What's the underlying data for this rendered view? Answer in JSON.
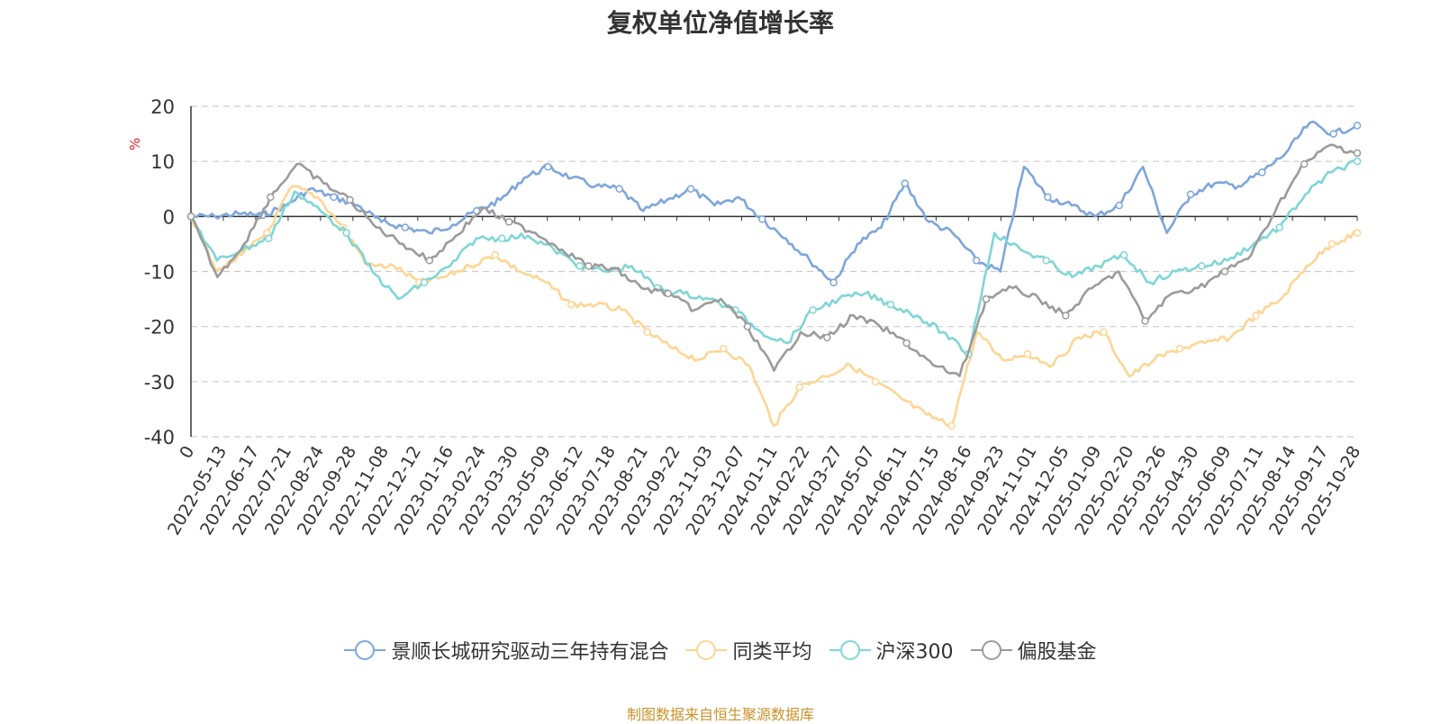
{
  "chart_data": {
    "type": "line",
    "title": "复权单位净值增长率",
    "ylabel": "%",
    "ylim": [
      -40,
      20
    ],
    "yticks": [
      20,
      10,
      0,
      -10,
      -20,
      -30,
      -40
    ],
    "ytick_labels": [
      "20",
      "10",
      "0",
      "-10",
      "-20",
      "-30",
      "-40"
    ],
    "x_tick_labels": [
      "0",
      "2022-05-13",
      "2022-06-17",
      "2022-07-21",
      "2022-08-24",
      "2022-09-28",
      "2022-11-08",
      "2022-12-12",
      "2023-01-16",
      "2023-02-24",
      "2023-03-30",
      "2023-05-09",
      "2023-06-12",
      "2023-07-18",
      "2023-08-21",
      "2023-09-22",
      "2023-11-03",
      "2023-12-07",
      "2024-01-11",
      "2024-02-22",
      "2024-03-27",
      "2024-05-07",
      "2024-06-11",
      "2024-07-15",
      "2024-08-16",
      "2024-09-23",
      "2024-11-01",
      "2024-12-05",
      "2025-01-09",
      "2025-02-20",
      "2025-03-26",
      "2025-04-30",
      "2025-06-09",
      "2025-07-11",
      "2025-08-14",
      "2025-09-17",
      "2025-10-28"
    ],
    "grid": true,
    "legend_position": "bottom",
    "series": [
      {
        "name": "景顺长城研究驱动三年持有混合",
        "color": "#7ea6d9",
        "values": [
          0,
          0,
          0.5,
          0.2,
          2,
          5,
          3.5,
          2,
          -1,
          -2,
          -3,
          -1.5,
          1,
          3,
          7,
          9,
          7,
          5.5,
          5,
          1,
          3,
          5,
          2,
          3.5,
          -0.5,
          -4,
          -8,
          -12,
          -5,
          -2,
          6,
          -1,
          -3,
          -8,
          -10,
          9,
          3.5,
          2,
          0,
          2,
          9,
          -3,
          4,
          6,
          5.5,
          8,
          11.5,
          17,
          15,
          16.5
        ]
      },
      {
        "name": "同类平均",
        "color": "#fcd694",
        "values": [
          0,
          -10,
          -7,
          -3,
          5.5,
          3.5,
          -2,
          -9,
          -9,
          -12,
          -11,
          -9,
          -7,
          -10,
          -12,
          -16,
          -16,
          -17,
          -21,
          -24,
          -26,
          -24,
          -27,
          -38,
          -31,
          -29,
          -27,
          -30,
          -33,
          -36,
          -38,
          -21,
          -26,
          -25,
          -27,
          -22,
          -21,
          -29,
          -26,
          -24,
          -23,
          -22,
          -18,
          -15,
          -9,
          -5,
          -3
        ]
      },
      {
        "name": "沪深300",
        "color": "#7fd6d5",
        "values": [
          0,
          -8,
          -6,
          -4,
          4.5,
          1,
          -3,
          -10,
          -15,
          -12,
          -9,
          -4,
          -4,
          -3.5,
          -6,
          -9,
          -10,
          -9,
          -13,
          -14,
          -15,
          -17,
          -21,
          -23,
          -17,
          -15,
          -14,
          -16,
          -18,
          -21,
          -25,
          -3,
          -6,
          -8,
          -11,
          -9,
          -7,
          -12,
          -10,
          -9,
          -8,
          -5,
          -2,
          4,
          8,
          10
        ]
      },
      {
        "name": "偏股基金",
        "color": "#9b9b9b",
        "values": [
          0,
          -11,
          -5,
          3.5,
          9.5,
          6,
          3,
          -2,
          -5,
          -8,
          -3.5,
          1.5,
          -1,
          -3,
          -6,
          -9,
          -9.5,
          -13,
          -14,
          -17,
          -15,
          -20,
          -28,
          -21,
          -22,
          -18,
          -20,
          -23,
          -27,
          -29,
          -15,
          -13,
          -15,
          -18,
          -13,
          -10,
          -19,
          -14,
          -13,
          -10,
          -7,
          2,
          9.5,
          13,
          11.5
        ]
      }
    ]
  },
  "legend_labels": [
    "景顺长城研究驱动三年持有混合",
    "同类平均",
    "沪深300",
    "偏股基金"
  ],
  "source_text": "制图数据来自恒生聚源数据库"
}
